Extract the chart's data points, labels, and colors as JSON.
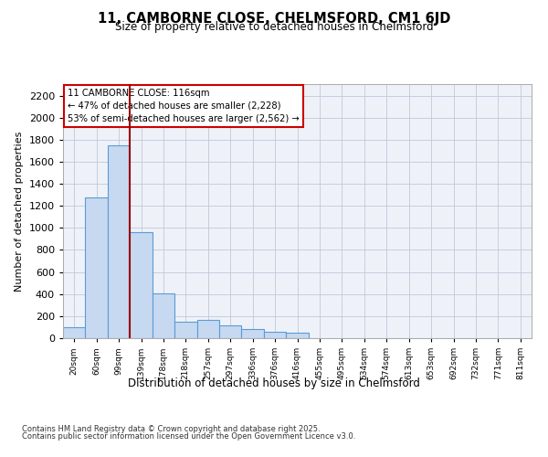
{
  "title_line1": "11, CAMBORNE CLOSE, CHELMSFORD, CM1 6JD",
  "title_line2": "Size of property relative to detached houses in Chelmsford",
  "xlabel": "Distribution of detached houses by size in Chelmsford",
  "ylabel": "Number of detached properties",
  "annotation_title": "11 CAMBORNE CLOSE: 116sqm",
  "annotation_line1": "← 47% of detached houses are smaller (2,228)",
  "annotation_line2": "53% of semi-detached houses are larger (2,562) →",
  "footnote1": "Contains HM Land Registry data © Crown copyright and database right 2025.",
  "footnote2": "Contains public sector information licensed under the Open Government Licence v3.0.",
  "bar_color": "#c6d9f0",
  "bar_edgecolor": "#5b9bd5",
  "background_color": "#eef2f8",
  "gridcolor": "#c0c8d8",
  "vline_color": "#990000",
  "vline_position": 2.5,
  "bin_labels": [
    "20sqm",
    "60sqm",
    "99sqm",
    "139sqm",
    "178sqm",
    "218sqm",
    "257sqm",
    "297sqm",
    "336sqm",
    "376sqm",
    "416sqm",
    "455sqm",
    "495sqm",
    "534sqm",
    "574sqm",
    "613sqm",
    "653sqm",
    "692sqm",
    "732sqm",
    "771sqm",
    "811sqm"
  ],
  "bar_heights": [
    100,
    1280,
    1750,
    960,
    410,
    150,
    165,
    115,
    80,
    55,
    50,
    0,
    0,
    0,
    0,
    0,
    0,
    0,
    0,
    0,
    0
  ],
  "ylim": [
    0,
    2300
  ],
  "yticks": [
    0,
    200,
    400,
    600,
    800,
    1000,
    1200,
    1400,
    1600,
    1800,
    2000,
    2200
  ]
}
